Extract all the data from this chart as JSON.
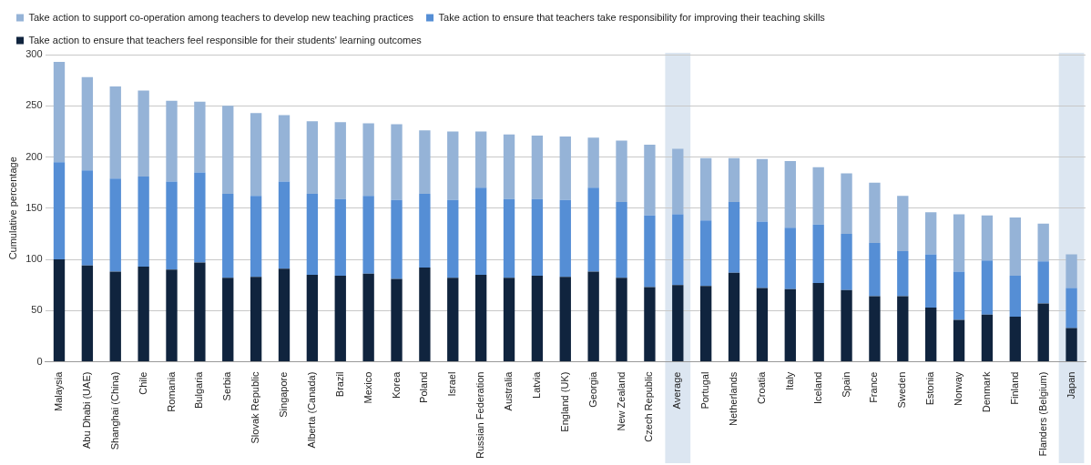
{
  "chart_data": {
    "type": "bar",
    "stacked": true,
    "ylabel": "Cumulative percentage",
    "categories": [
      "Malaysia",
      "Abu Dhabi (UAE)",
      "Shanghai (China)",
      "Chile",
      "Romania",
      "Bulgaria",
      "Serbia",
      "Slovak Republic",
      "Singapore",
      "Alberta (Canada)",
      "Brazil",
      "Mexico",
      "Korea",
      "Poland",
      "Israel",
      "Russian Federation",
      "Australia",
      "Latvia",
      "England (UK)",
      "Georgia",
      "New Zealand",
      "Czech Republic",
      "Average",
      "Portugal",
      "Netherlands",
      "Croatia",
      "Italy",
      "Iceland",
      "Spain",
      "France",
      "Sweden",
      "Estonia",
      "Norway",
      "Denmark",
      "Finland",
      "Flanders (Belgium)",
      "Japan"
    ],
    "series": [
      {
        "name": "Take action to ensure that teachers feel responsible for their students' learning outcomes",
        "color": "#10243e",
        "values": [
          100,
          94,
          88,
          93,
          90,
          97,
          82,
          83,
          91,
          85,
          84,
          86,
          81,
          92,
          82,
          85,
          82,
          84,
          83,
          88,
          82,
          73,
          75,
          74,
          87,
          72,
          71,
          77,
          70,
          64,
          64,
          53,
          41,
          46,
          44,
          57,
          33
        ]
      },
      {
        "name": "Take action to ensure that teachers take responsibility for improving their teaching skills",
        "color": "#558ed5",
        "values": [
          95,
          93,
          91,
          88,
          86,
          88,
          82,
          79,
          85,
          79,
          75,
          76,
          77,
          72,
          76,
          85,
          77,
          75,
          75,
          82,
          74,
          70,
          69,
          64,
          69,
          65,
          60,
          57,
          55,
          52,
          44,
          52,
          47,
          53,
          40,
          41,
          39
        ]
      },
      {
        "name": "Take action to support co-operation among teachers to develop new teaching practices",
        "color": "#95b3d7",
        "values": [
          98,
          91,
          90,
          84,
          79,
          69,
          86,
          81,
          65,
          71,
          75,
          71,
          74,
          62,
          67,
          55,
          63,
          62,
          62,
          49,
          60,
          69,
          64,
          61,
          43,
          61,
          65,
          56,
          59,
          59,
          54,
          41,
          56,
          44,
          57,
          37,
          33
        ]
      }
    ],
    "ylim": [
      0,
      300
    ],
    "yticks": [
      0,
      50,
      100,
      150,
      200,
      250,
      300
    ],
    "grid": "y",
    "legend": "top",
    "bands": [
      {
        "axis": "x",
        "from": "Average",
        "to": "Average",
        "color": "#dce6f1"
      },
      {
        "axis": "x",
        "from": "Japan",
        "to": "Japan",
        "color": "#dce6f1"
      }
    ]
  }
}
